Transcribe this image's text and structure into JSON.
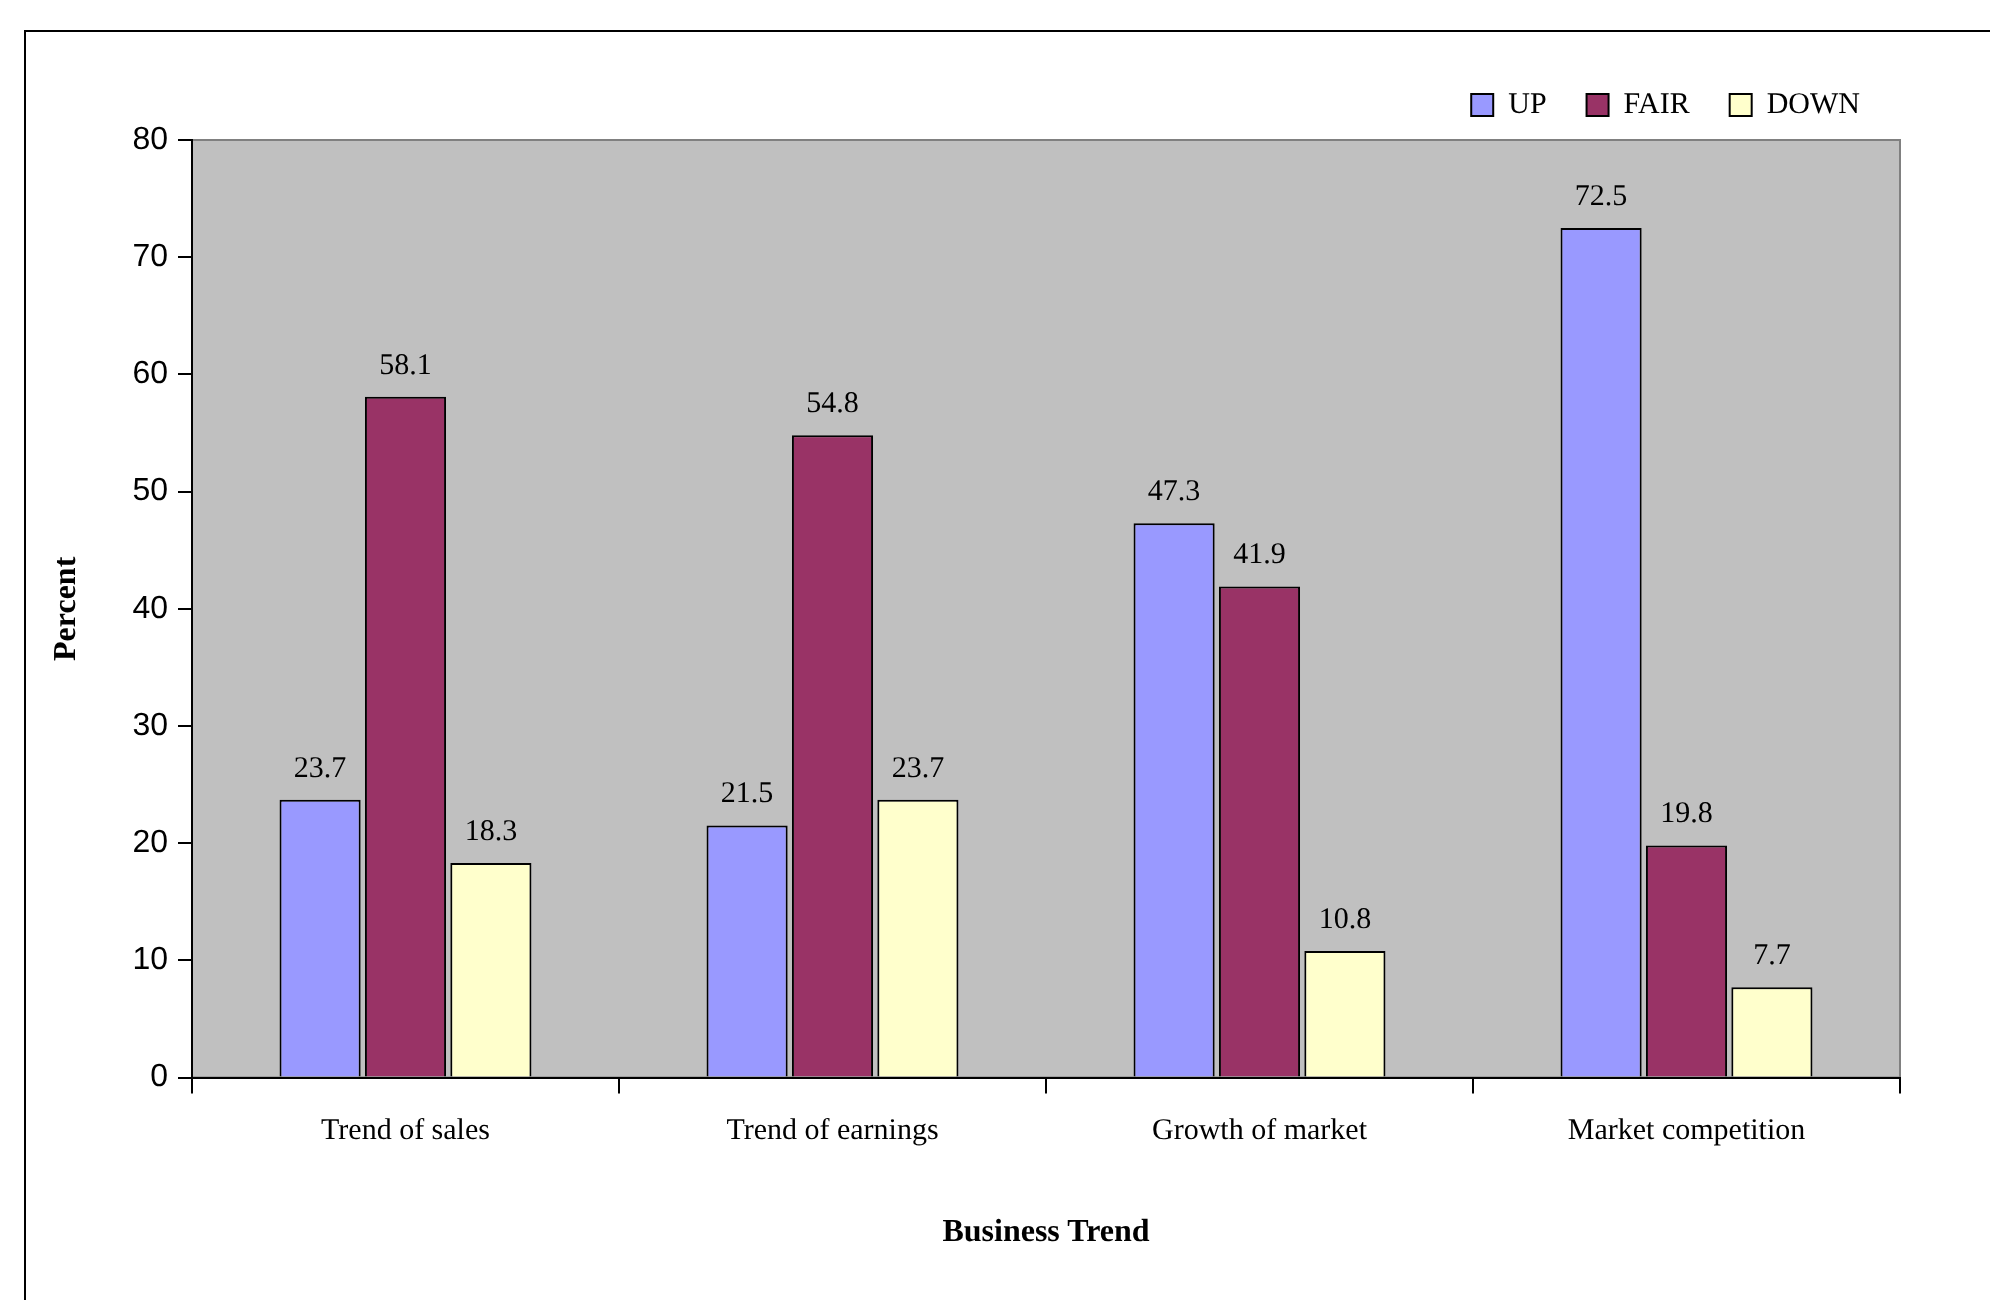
{
  "chart_data": {
    "type": "bar",
    "xlabel": "Business Trend",
    "ylabel": "Percent",
    "categories": [
      "Trend of sales",
      "Trend of earnings",
      "Growth of market",
      "Market competition"
    ],
    "series": [
      {
        "name": "UP",
        "color": "#9999ff",
        "values": [
          23.7,
          21.5,
          47.3,
          72.5
        ]
      },
      {
        "name": "FAIR",
        "color": "#993366",
        "values": [
          58.1,
          54.8,
          41.9,
          19.8
        ]
      },
      {
        "name": "DOWN",
        "color": "#ffffcc",
        "values": [
          18.3,
          23.7,
          10.8,
          7.7
        ]
      }
    ],
    "ylim": [
      0,
      80
    ],
    "yticks": [
      0,
      10,
      20,
      30,
      40,
      50,
      60,
      70,
      80
    ],
    "grid": false,
    "legend": "top right",
    "data_labels": true
  }
}
